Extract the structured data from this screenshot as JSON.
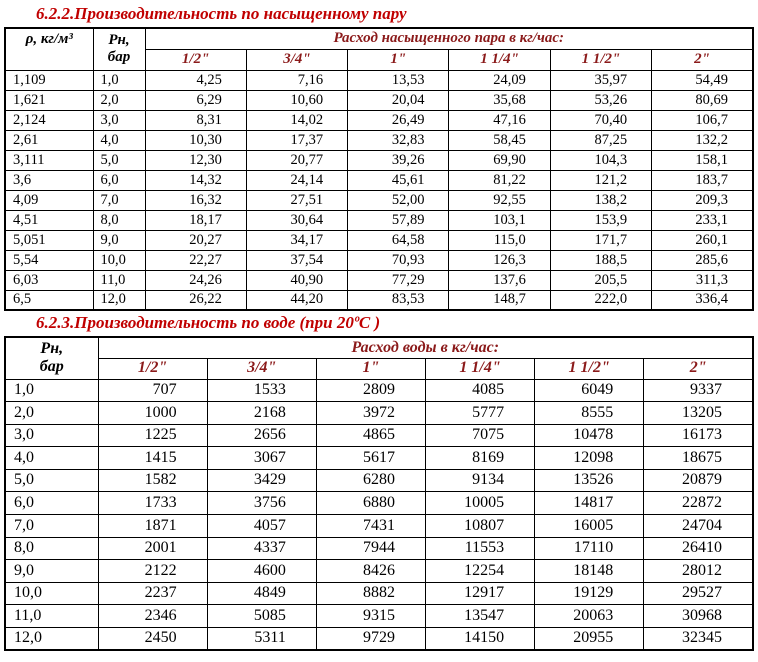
{
  "colors": {
    "title": "#c00000",
    "header_text": "#8b1a1a",
    "text": "#000000",
    "border": "#000000",
    "background": "#ffffff"
  },
  "section1": {
    "title": "6.2.2.Производительность по насыщенному пару",
    "table": {
      "col1_header": "ρ, кг/м³",
      "col2_header": "Рн,\nбар",
      "span_header": "Расход насыщенного пара в кг/час:",
      "size_headers": [
        "1/2\"",
        "3/4\"",
        "1\"",
        "1 1/4\"",
        "1 1/2\"",
        "2\""
      ],
      "rows": [
        [
          "1,109",
          "1,0",
          "4,25",
          "7,16",
          "13,53",
          "24,09",
          "35,97",
          "54,49"
        ],
        [
          "1,621",
          "2,0",
          "6,29",
          "10,60",
          "20,04",
          "35,68",
          "53,26",
          "80,69"
        ],
        [
          "2,124",
          "3,0",
          "8,31",
          "14,02",
          "26,49",
          "47,16",
          "70,40",
          "106,7"
        ],
        [
          "2,61",
          "4,0",
          "10,30",
          "17,37",
          "32,83",
          "58,45",
          "87,25",
          "132,2"
        ],
        [
          "3,111",
          "5,0",
          "12,30",
          "20,77",
          "39,26",
          "69,90",
          "104,3",
          "158,1"
        ],
        [
          "3,6",
          "6,0",
          "14,32",
          "24,14",
          "45,61",
          "81,22",
          "121,2",
          "183,7"
        ],
        [
          "4,09",
          "7,0",
          "16,32",
          "27,51",
          "52,00",
          "92,55",
          "138,2",
          "209,3"
        ],
        [
          "4,51",
          "8,0",
          "18,17",
          "30,64",
          "57,89",
          "103,1",
          "153,9",
          "233,1"
        ],
        [
          "5,051",
          "9,0",
          "20,27",
          "34,17",
          "64,58",
          "115,0",
          "171,7",
          "260,1"
        ],
        [
          "5,54",
          "10,0",
          "22,27",
          "37,54",
          "70,93",
          "126,3",
          "188,5",
          "285,6"
        ],
        [
          "6,03",
          "11,0",
          "24,26",
          "40,90",
          "77,29",
          "137,6",
          "205,5",
          "311,3"
        ],
        [
          "6,5",
          "12,0",
          "26,22",
          "44,20",
          "83,53",
          "148,7",
          "222,0",
          "336,4"
        ]
      ]
    }
  },
  "section2": {
    "title": "6.2.3.Производительность по воде (при 20ºС )",
    "table": {
      "col1_header": "Рн,\nбар",
      "span_header": "Расход воды  в кг/час:",
      "size_headers": [
        "1/2\"",
        "3/4\"",
        "1\"",
        "1 1/4\"",
        "1 1/2\"",
        "2\""
      ],
      "rows": [
        [
          "1,0",
          "707",
          "1533",
          "2809",
          "4085",
          "6049",
          "9337"
        ],
        [
          "2,0",
          "1000",
          "2168",
          "3972",
          "5777",
          "8555",
          "13205"
        ],
        [
          "3,0",
          "1225",
          "2656",
          "4865",
          "7075",
          "10478",
          "16173"
        ],
        [
          "4,0",
          "1415",
          "3067",
          "5617",
          "8169",
          "12098",
          "18675"
        ],
        [
          "5,0",
          "1582",
          "3429",
          "6280",
          "9134",
          "13526",
          "20879"
        ],
        [
          "6,0",
          "1733",
          "3756",
          "6880",
          "10005",
          "14817",
          "22872"
        ],
        [
          "7,0",
          "1871",
          "4057",
          "7431",
          "10807",
          "16005",
          "24704"
        ],
        [
          "8,0",
          "2001",
          "4337",
          "7944",
          "11553",
          "17110",
          "26410"
        ],
        [
          "9,0",
          "2122",
          "4600",
          "8426",
          "12254",
          "18148",
          "28012"
        ],
        [
          "10,0",
          "2237",
          "4849",
          "8882",
          "12917",
          "19129",
          "29527"
        ],
        [
          "11,0",
          "2346",
          "5085",
          "9315",
          "13547",
          "20063",
          "30968"
        ],
        [
          "12,0",
          "2450",
          "5311",
          "9729",
          "14150",
          "20955",
          "32345"
        ]
      ]
    }
  }
}
